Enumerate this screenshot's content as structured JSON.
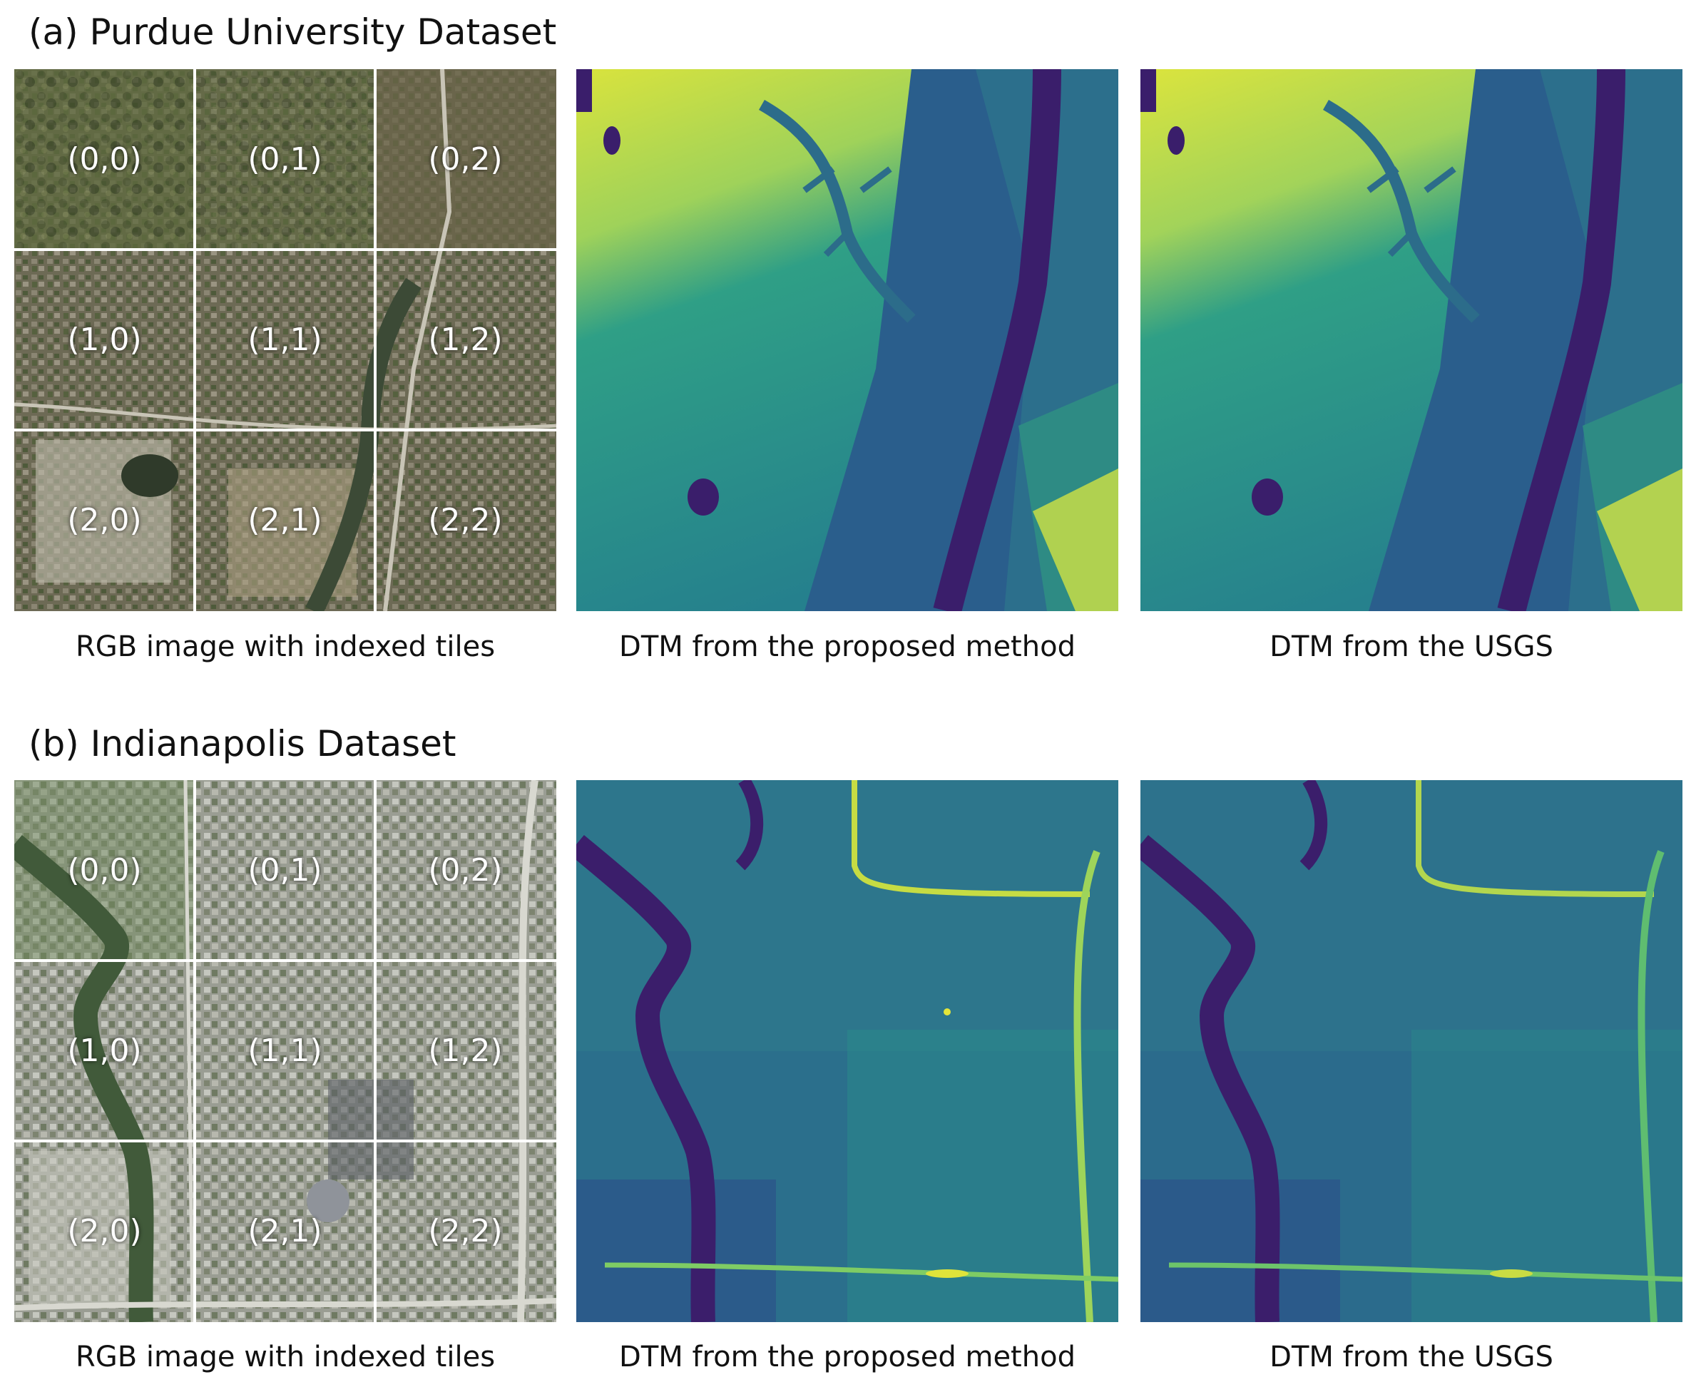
{
  "figure": {
    "sections": [
      {
        "title": "(a) Purdue University Dataset",
        "tiles": [
          "(0,0)",
          "(0,1)",
          "(0,2)",
          "(1,0)",
          "(1,1)",
          "(1,2)",
          "(2,0)",
          "(2,1)",
          "(2,2)"
        ],
        "captions": {
          "rgb": "RGB image with indexed tiles",
          "proposed": "DTM from the proposed method",
          "usgs": "DTM from the USGS"
        }
      },
      {
        "title": "(b) Indianapolis Dataset",
        "tiles": [
          "(0,0)",
          "(0,1)",
          "(0,2)",
          "(1,0)",
          "(1,1)",
          "(1,2)",
          "(2,0)",
          "(2,1)",
          "(2,2)"
        ],
        "captions": {
          "rgb": "RGB image with indexed tiles",
          "proposed": "DTM from the proposed method",
          "usgs": "DTM from the USGS"
        }
      }
    ],
    "colormap": {
      "low": "#3b1f6e",
      "mid": "#2a8c8a",
      "high": "#dfe33a"
    }
  }
}
